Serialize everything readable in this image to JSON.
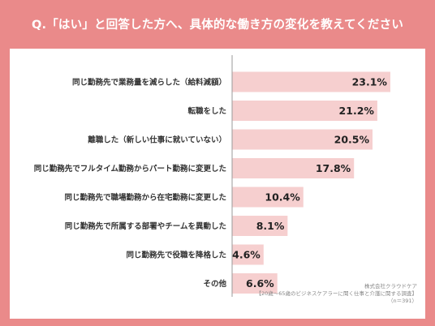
{
  "header": {
    "title": "Q.「はい」と回答した方へ、具体的な働き方の変化を教えてください"
  },
  "source": {
    "line1": "株式会社クラウドケア",
    "line2": "【20歳～65歳のビジネスケアラーに聞く仕事と介護に関する調査】",
    "line3": "（n＝391）"
  },
  "colors": {
    "background": "#ea8a8a",
    "bar": "#f6cfcf",
    "axis": "#9a9a9a"
  },
  "chart_data": {
    "type": "bar",
    "orientation": "horizontal",
    "categories": [
      "同じ勤務先で業務量を減らした（給料減額）",
      "転職をした",
      "離職した（新しい仕事に就いていない）",
      "同じ勤務先でフルタイム勤務からパート勤務に変更した",
      "同じ勤務先で職場勤務から在宅勤務に変更した",
      "同じ勤務先で所属する部署やチームを異動した",
      "同じ勤務先で役職を降格した",
      "その他"
    ],
    "values": [
      23.1,
      21.2,
      20.5,
      17.8,
      10.4,
      8.1,
      4.6,
      6.6
    ],
    "value_labels": [
      "23.1%",
      "21.2%",
      "20.5%",
      "17.8%",
      "10.4%",
      "8.1%",
      "4.6%",
      "6.6%"
    ],
    "unit": "%",
    "xlim": [
      0,
      25
    ],
    "grid": false,
    "legend": "none"
  }
}
